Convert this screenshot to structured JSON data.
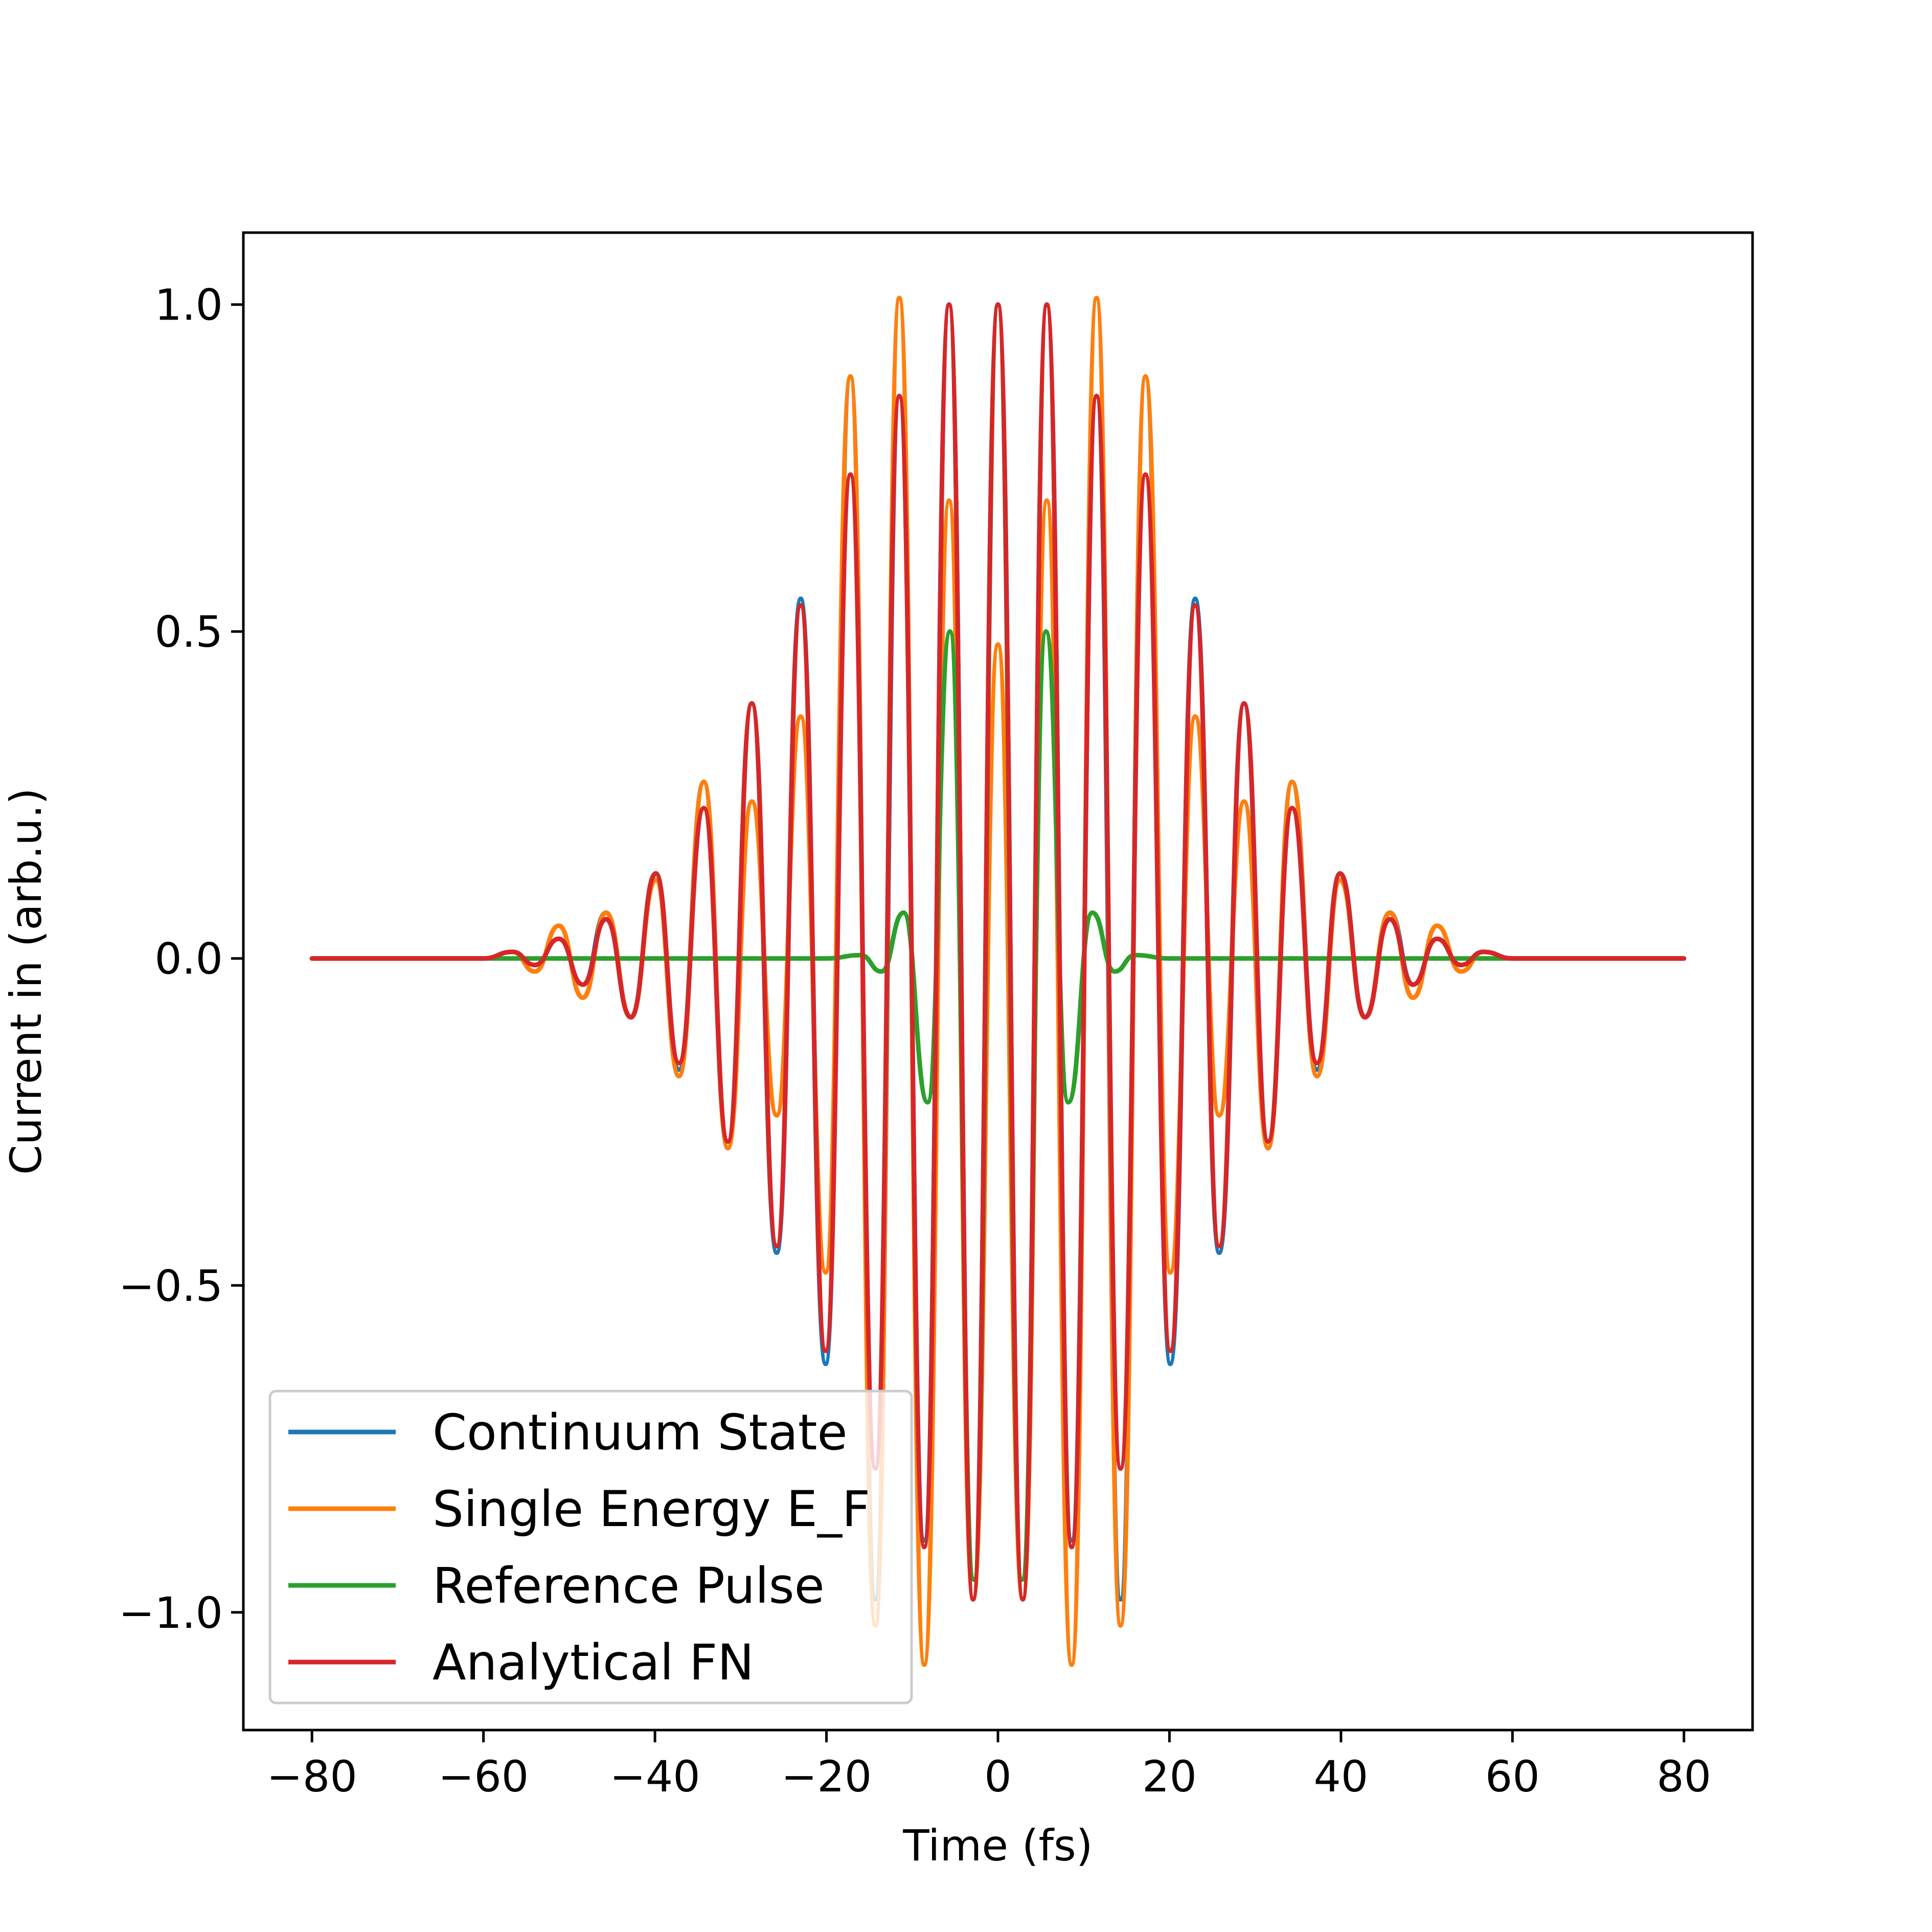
{
  "chart_data": {
    "type": "line",
    "title": "",
    "xlabel": "Time (fs)",
    "ylabel": "Current in (arb.u.)",
    "xlim": [
      -88,
      88
    ],
    "ylim": [
      -1.18,
      1.11
    ],
    "xticks": [
      -80,
      -60,
      -40,
      -20,
      0,
      20,
      40,
      60,
      80
    ],
    "xtick_labels": [
      "−80",
      "−60",
      "−40",
      "−20",
      "0",
      "20",
      "40",
      "60",
      "80"
    ],
    "yticks": [
      -1.0,
      -0.5,
      0.0,
      0.5,
      1.0
    ],
    "ytick_labels": [
      "−1.0",
      "−0.5",
      "0.0",
      "0.5",
      "1.0"
    ],
    "grid": false,
    "legend_position": "lower-left",
    "series": [
      {
        "name": "Continuum State",
        "color": "#1f77b4",
        "x": [
          -80,
          -60,
          -56.6,
          -54,
          -51.2,
          -48.4,
          -45.7,
          -42.8,
          -39.9,
          -37.2,
          -34.3,
          -31.5,
          -28.7,
          -25.8,
          -23,
          -20.1,
          -17.2,
          -14.3,
          -11.5,
          -8.6,
          -5.7,
          -2.9,
          0,
          2.9,
          5.7,
          8.6,
          11.5,
          14.3,
          17.2,
          20.1,
          23,
          25.8,
          28.7,
          31.5,
          34.3,
          37.2,
          39.9,
          42.8,
          45.7,
          48.4,
          51.2,
          54,
          56.6,
          60,
          80
        ],
        "y": [
          0,
          0,
          0.01,
          -0.01,
          0.03,
          -0.04,
          0.07,
          -0.09,
          0.13,
          -0.17,
          0.27,
          -0.29,
          0.39,
          -0.45,
          0.55,
          -0.62,
          0.89,
          -0.98,
          0.86,
          -0.89,
          1.0,
          -0.98,
          1.0,
          -0.98,
          1.0,
          -0.89,
          0.86,
          -0.98,
          0.89,
          -0.62,
          0.55,
          -0.45,
          0.39,
          -0.29,
          0.27,
          -0.17,
          0.13,
          -0.09,
          0.07,
          -0.04,
          0.03,
          -0.01,
          0.01,
          0,
          0
        ]
      },
      {
        "name": "Single Energy E_F",
        "color": "#ff7f0e",
        "x": [
          -80,
          -60,
          -56.6,
          -54,
          -51.2,
          -48.4,
          -45.7,
          -42.8,
          -39.9,
          -37.2,
          -34.3,
          -31.5,
          -28.7,
          -25.8,
          -23,
          -20.1,
          -17.2,
          -14.3,
          -11.5,
          -8.6,
          -5.7,
          -2.9,
          0,
          2.9,
          5.7,
          8.6,
          11.5,
          14.3,
          17.2,
          20.1,
          23,
          25.8,
          28.7,
          31.5,
          34.3,
          37.2,
          39.9,
          42.8,
          45.7,
          48.4,
          51.2,
          54,
          56.6,
          60,
          80
        ],
        "y": [
          0,
          0,
          0.01,
          -0.02,
          0.05,
          -0.06,
          0.07,
          -0.09,
          0.12,
          -0.18,
          0.27,
          -0.29,
          0.24,
          -0.24,
          0.37,
          -0.48,
          0.89,
          -1.02,
          1.01,
          -1.08,
          0.7,
          -0.98,
          0.48,
          -0.98,
          0.7,
          -1.08,
          1.01,
          -1.02,
          0.89,
          -0.48,
          0.37,
          -0.24,
          0.24,
          -0.29,
          0.27,
          -0.18,
          0.12,
          -0.09,
          0.07,
          -0.06,
          0.05,
          -0.02,
          0.01,
          0,
          0
        ]
      },
      {
        "name": "Reference Pulse",
        "color": "#2ca02c",
        "x": [
          -80,
          -20,
          -16,
          -13.6,
          -11,
          -8.2,
          -5.6,
          -2.8,
          0,
          2.8,
          5.6,
          8.2,
          11,
          13.6,
          16,
          20,
          80
        ],
        "y": [
          0,
          0,
          0.005,
          -0.02,
          0.07,
          -0.22,
          0.5,
          -0.95,
          1.0,
          -0.95,
          0.5,
          -0.22,
          0.07,
          -0.02,
          0.005,
          0,
          0
        ]
      },
      {
        "name": "Analytical FN",
        "color": "#d62728",
        "x": [
          -80,
          -60,
          -56.6,
          -54,
          -51.2,
          -48.4,
          -45.7,
          -42.8,
          -39.9,
          -37.2,
          -34.3,
          -31.5,
          -28.7,
          -25.8,
          -23,
          -20.1,
          -17.2,
          -14.3,
          -11.5,
          -8.6,
          -5.7,
          -2.9,
          0,
          2.9,
          5.7,
          8.6,
          11.5,
          14.3,
          17.2,
          20.1,
          23,
          25.8,
          28.7,
          31.5,
          34.3,
          37.2,
          39.9,
          42.8,
          45.7,
          48.4,
          51.2,
          54,
          56.6,
          60,
          80
        ],
        "y": [
          0,
          0,
          0.01,
          -0.01,
          0.03,
          -0.04,
          0.06,
          -0.09,
          0.13,
          -0.16,
          0.23,
          -0.28,
          0.39,
          -0.44,
          0.54,
          -0.6,
          0.74,
          -0.78,
          0.86,
          -0.9,
          1.0,
          -0.98,
          1.0,
          -0.98,
          1.0,
          -0.9,
          0.86,
          -0.78,
          0.74,
          -0.6,
          0.54,
          -0.44,
          0.39,
          -0.28,
          0.23,
          -0.16,
          0.13,
          -0.09,
          0.06,
          -0.04,
          0.03,
          -0.01,
          0.01,
          0,
          0
        ]
      }
    ]
  }
}
